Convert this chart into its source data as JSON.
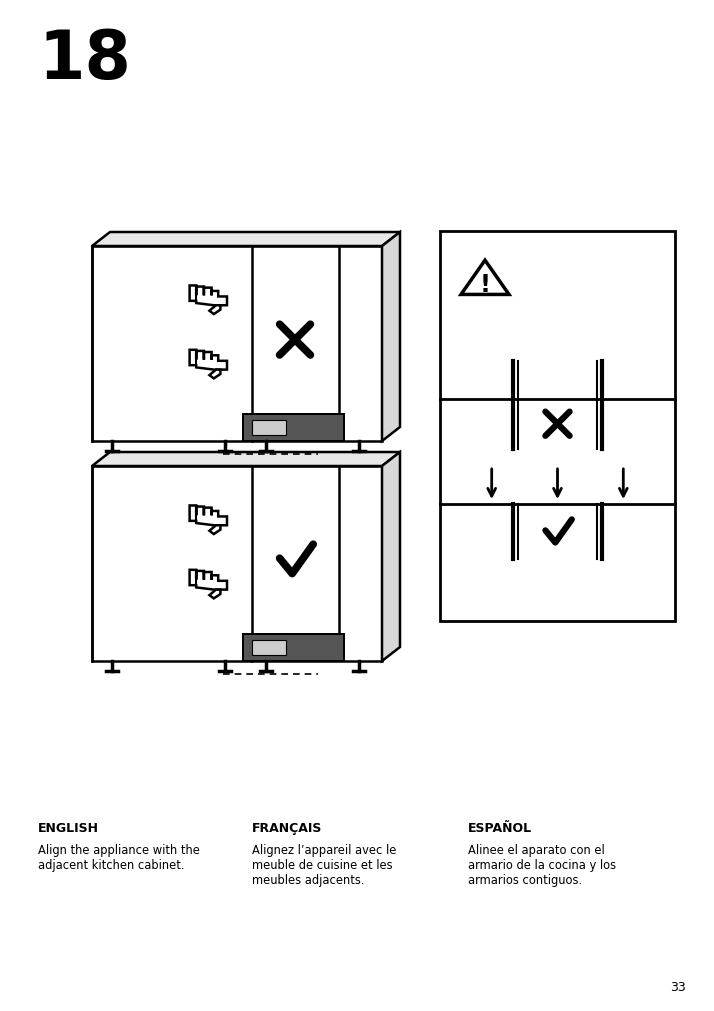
{
  "background_color": "#ffffff",
  "step_number": "18",
  "page_number": "33",
  "languages": [
    {
      "title": "ENGLISH",
      "body": "Align the appliance with the\nadjacent kitchen cabinet."
    },
    {
      "title": "FRANÇAIS",
      "body": "Alignez l’appareil avec le\nmeuble de cuisine et les\nmeubles adjacents."
    },
    {
      "title": "ESPAÑOL",
      "body": "Alinee el aparato con el\narmario de la cocina y los\narmarios contiguos."
    }
  ]
}
